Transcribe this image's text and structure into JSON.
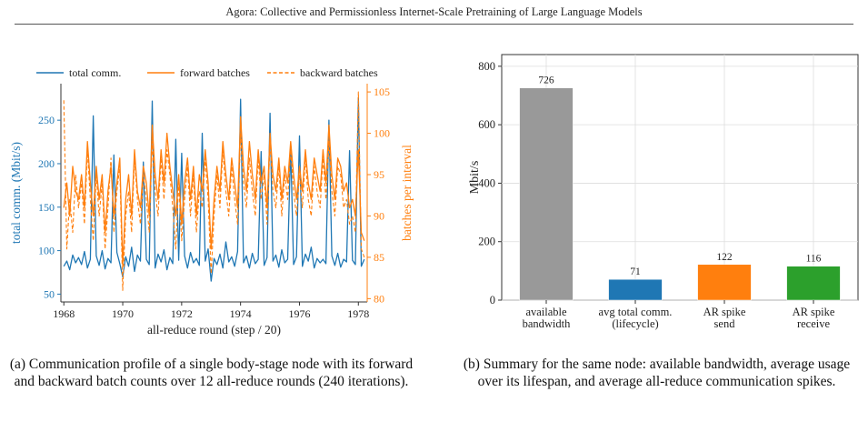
{
  "header": {
    "running_title": "Agora: Collective and Permissionless Internet-Scale Pretraining of Large Language Models"
  },
  "captions": {
    "a": "(a) Communication profile of a single body-stage node with its forward and backward batch counts over 12 all-reduce rounds (240 iterations).",
    "b": "(b) Summary for the same node: available bandwidth, average usage over its lifespan, and average all-reduce communication spikes."
  },
  "chart_data": [
    {
      "type": "line",
      "title": "",
      "xlabel": "all-reduce round (step / 20)",
      "ylabel_left": "total comm. (Mbit/s)",
      "ylabel_right": "batches per interval",
      "xlim": [
        1967.9,
        1978.3
      ],
      "ylim_left": [
        41,
        292
      ],
      "ylim_right": [
        79.6,
        106
      ],
      "x_ticks": [
        "1968",
        "1970",
        "1972",
        "1974",
        "1976",
        "1978"
      ],
      "y_ticks_left": [
        "50",
        "100",
        "150",
        "200",
        "250"
      ],
      "y_ticks_right": [
        "80",
        "85",
        "90",
        "95",
        "100",
        "105"
      ],
      "legend_position": "top",
      "colors": {
        "comm": "#1f77b4",
        "batches": "#ff7f0e",
        "left_axis_text": "#1f77b4",
        "right_axis_text": "#ff7f0e"
      },
      "series": [
        {
          "name": "total comm.",
          "axis": "left",
          "style": "solid",
          "color": "#1f77b4",
          "x": [
            1968.0,
            1968.1,
            1968.2,
            1968.3,
            1968.4,
            1968.5,
            1968.6,
            1968.7,
            1968.8,
            1968.9,
            1969.0,
            1969.1,
            1969.2,
            1969.3,
            1969.4,
            1969.5,
            1969.6,
            1969.7,
            1969.8,
            1969.9,
            1970.0,
            1970.1,
            1970.2,
            1970.3,
            1970.4,
            1970.5,
            1970.6,
            1970.7,
            1970.8,
            1970.9,
            1971.0,
            1971.1,
            1971.2,
            1971.3,
            1971.4,
            1971.5,
            1971.6,
            1971.7,
            1971.8,
            1971.9,
            1972.0,
            1972.1,
            1972.2,
            1972.3,
            1972.4,
            1972.5,
            1972.6,
            1972.7,
            1972.8,
            1972.9,
            1973.0,
            1973.1,
            1973.2,
            1973.3,
            1973.4,
            1973.5,
            1973.6,
            1973.7,
            1973.8,
            1973.9,
            1974.0,
            1974.1,
            1974.2,
            1974.3,
            1974.4,
            1974.5,
            1974.6,
            1974.7,
            1974.8,
            1974.9,
            1975.0,
            1975.1,
            1975.2,
            1975.3,
            1975.4,
            1975.5,
            1975.6,
            1975.7,
            1975.8,
            1975.9,
            1976.0,
            1976.1,
            1976.2,
            1976.3,
            1976.4,
            1976.5,
            1976.6,
            1976.7,
            1976.8,
            1976.9,
            1977.0,
            1977.1,
            1977.2,
            1977.3,
            1977.4,
            1977.5,
            1977.6,
            1977.7,
            1977.8,
            1977.9,
            1978.0,
            1978.1,
            1978.2
          ],
          "y": [
            82,
            88,
            78,
            95,
            86,
            92,
            84,
            99,
            80,
            90,
            255,
            94,
            83,
            100,
            79,
            91,
            86,
            210,
            98,
            85,
            70,
            93,
            82,
            104,
            76,
            95,
            88,
            202,
            90,
            84,
            272,
            80,
            96,
            87,
            101,
            78,
            92,
            85,
            228,
            89,
            212,
            94,
            80,
            98,
            86,
            91,
            83,
            235,
            88,
            102,
            65,
            91,
            84,
            96,
            80,
            110,
            87,
            93,
            82,
            99,
            274,
            86,
            94,
            80,
            97,
            85,
            90,
            214,
            83,
            92,
            258,
            88,
            95,
            81,
            101,
            86,
            90,
            220,
            84,
            93,
            232,
            82,
            96,
            88,
            104,
            80,
            91,
            86,
            90,
            85,
            250,
            94,
            83,
            97,
            81,
            90,
            87,
            215,
            89,
            84,
            276,
            82,
            90
          ]
        },
        {
          "name": "forward batches",
          "axis": "right",
          "style": "solid",
          "color": "#ff7f0e",
          "x": [
            1968.0,
            1968.1,
            1968.2,
            1968.3,
            1968.4,
            1968.5,
            1968.6,
            1968.7,
            1968.8,
            1968.9,
            1969.0,
            1969.1,
            1969.2,
            1969.3,
            1969.4,
            1969.5,
            1969.6,
            1969.7,
            1969.8,
            1969.9,
            1970.0,
            1970.1,
            1970.2,
            1970.3,
            1970.4,
            1970.5,
            1970.6,
            1970.7,
            1970.8,
            1970.9,
            1971.0,
            1971.1,
            1971.2,
            1971.3,
            1971.4,
            1971.5,
            1971.6,
            1971.7,
            1971.8,
            1971.9,
            1972.0,
            1972.1,
            1972.2,
            1972.3,
            1972.4,
            1972.5,
            1972.6,
            1972.7,
            1972.8,
            1972.9,
            1973.0,
            1973.1,
            1973.2,
            1973.3,
            1973.4,
            1973.5,
            1973.6,
            1973.7,
            1973.8,
            1973.9,
            1974.0,
            1974.1,
            1974.2,
            1974.3,
            1974.4,
            1974.5,
            1974.6,
            1974.7,
            1974.8,
            1974.9,
            1975.0,
            1975.1,
            1975.2,
            1975.3,
            1975.4,
            1975.5,
            1975.6,
            1975.7,
            1975.8,
            1975.9,
            1976.0,
            1976.1,
            1976.2,
            1976.3,
            1976.4,
            1976.5,
            1976.6,
            1976.7,
            1976.8,
            1976.9,
            1977.0,
            1977.1,
            1977.2,
            1977.3,
            1977.4,
            1977.5,
            1977.6,
            1977.7,
            1977.8,
            1977.9,
            1978.0,
            1978.1,
            1978.2
          ],
          "y": [
            91,
            94,
            90,
            96,
            93,
            92,
            95,
            91,
            99,
            94,
            90,
            96,
            92,
            95,
            88,
            93,
            96,
            90,
            94,
            97,
            84,
            92,
            95,
            90,
            98,
            93,
            91,
            96,
            94,
            90,
            101,
            95,
            92,
            98,
            94,
            100,
            96,
            93,
            90,
            95,
            89,
            94,
            97,
            92,
            96,
            90,
            95,
            93,
            98,
            94,
            86,
            92,
            96,
            93,
            99,
            95,
            92,
            97,
            94,
            91,
            102,
            96,
            93,
            99,
            95,
            92,
            98,
            94,
            96,
            91,
            100,
            95,
            93,
            97,
            92,
            96,
            94,
            99,
            95,
            92,
            96,
            93,
            98,
            94,
            92,
            97,
            95,
            93,
            98,
            94,
            101,
            95,
            92,
            97,
            96,
            93,
            94,
            91,
            92,
            90,
            98,
            88,
            87
          ]
        },
        {
          "name": "backward batches",
          "axis": "right",
          "style": "dashed",
          "color": "#ff7f0e",
          "x": [
            1968.0,
            1968.1,
            1968.2,
            1968.3,
            1968.4,
            1968.5,
            1968.6,
            1968.7,
            1968.8,
            1968.9,
            1969.0,
            1969.1,
            1969.2,
            1969.3,
            1969.4,
            1969.5,
            1969.6,
            1969.7,
            1969.8,
            1969.9,
            1970.0,
            1970.1,
            1970.2,
            1970.3,
            1970.4,
            1970.5,
            1970.6,
            1970.7,
            1970.8,
            1970.9,
            1971.0,
            1971.1,
            1971.2,
            1971.3,
            1971.4,
            1971.5,
            1971.6,
            1971.7,
            1971.8,
            1971.9,
            1972.0,
            1972.1,
            1972.2,
            1972.3,
            1972.4,
            1972.5,
            1972.6,
            1972.7,
            1972.8,
            1972.9,
            1973.0,
            1973.1,
            1973.2,
            1973.3,
            1973.4,
            1973.5,
            1973.6,
            1973.7,
            1973.8,
            1973.9,
            1974.0,
            1974.1,
            1974.2,
            1974.3,
            1974.4,
            1974.5,
            1974.6,
            1974.7,
            1974.8,
            1974.9,
            1975.0,
            1975.1,
            1975.2,
            1975.3,
            1975.4,
            1975.5,
            1975.6,
            1975.7,
            1975.8,
            1975.9,
            1976.0,
            1976.1,
            1976.2,
            1976.3,
            1976.4,
            1976.5,
            1976.6,
            1976.7,
            1976.8,
            1976.9,
            1977.0,
            1977.1,
            1977.2,
            1977.3,
            1977.4,
            1977.5,
            1977.6,
            1977.7,
            1977.8,
            1977.9,
            1978.0,
            1978.1,
            1978.2
          ],
          "y": [
            104,
            86,
            92,
            88,
            95,
            91,
            94,
            89,
            98,
            92,
            87,
            95,
            90,
            94,
            86,
            91,
            97,
            88,
            93,
            96,
            81,
            90,
            93,
            88,
            97,
            92,
            89,
            95,
            92,
            88,
            99,
            93,
            90,
            97,
            92,
            98,
            95,
            91,
            86,
            94,
            87,
            92,
            96,
            90,
            95,
            88,
            93,
            91,
            97,
            92,
            83,
            90,
            95,
            91,
            98,
            93,
            90,
            96,
            92,
            89,
            100,
            94,
            91,
            97,
            93,
            90,
            97,
            92,
            95,
            89,
            99,
            93,
            91,
            96,
            90,
            95,
            92,
            98,
            93,
            90,
            95,
            91,
            97,
            92,
            90,
            96,
            93,
            91,
            97,
            92,
            99,
            93,
            90,
            96,
            95,
            91,
            92,
            89,
            90,
            88,
            105,
            86,
            85
          ]
        }
      ]
    },
    {
      "type": "bar",
      "title": "",
      "xlabel": "",
      "ylabel": "Mbit/s",
      "ylim": [
        0,
        840
      ],
      "y_ticks": [
        "0",
        "200",
        "400",
        "600",
        "800"
      ],
      "grid": true,
      "categories": [
        [
          "available",
          "bandwidth"
        ],
        [
          "avg total comm.",
          "(lifecycle)"
        ],
        [
          "AR spike",
          "send"
        ],
        [
          "AR spike",
          "receive"
        ]
      ],
      "values": [
        726,
        71,
        122,
        116
      ],
      "value_labels": [
        "726",
        "71",
        "122",
        "116"
      ],
      "colors": [
        "#999999",
        "#1f77b4",
        "#ff7f0e",
        "#2ca02c"
      ]
    }
  ]
}
